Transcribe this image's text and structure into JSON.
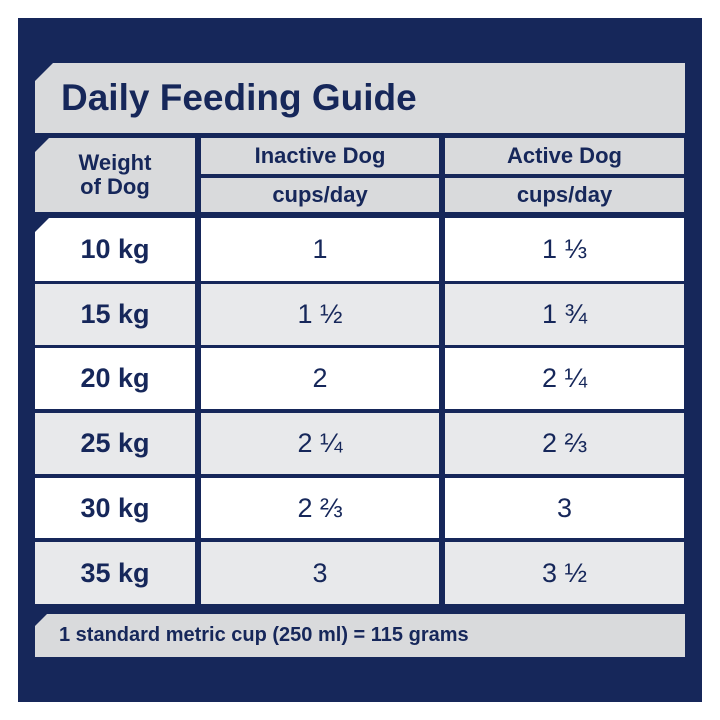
{
  "title": "Daily Feeding Guide",
  "headers": {
    "weight_line1": "Weight",
    "weight_line2": "of Dog",
    "inactive": "Inactive Dog",
    "inactive_unit": "cups/day",
    "active": "Active Dog",
    "active_unit": "cups/day"
  },
  "rows": [
    {
      "weight": "10 kg",
      "inactive": "1",
      "active": "1 ⅓"
    },
    {
      "weight": "15 kg",
      "inactive": "1 ½",
      "active": "1 ¾"
    },
    {
      "weight": "20 kg",
      "inactive": "2",
      "active": "2 ¼"
    },
    {
      "weight": "25 kg",
      "inactive": "2 ¼",
      "active": "2 ⅔"
    },
    {
      "weight": "30 kg",
      "inactive": "2 ⅔",
      "active": "3"
    },
    {
      "weight": "35 kg",
      "inactive": "3",
      "active": "3 ½"
    }
  ],
  "footer": "1 standard metric cup (250 ml) = 115 grams",
  "colors": {
    "navy": "#16275a",
    "header_gray": "#d9dadc",
    "row_gray": "#e8e9eb"
  }
}
